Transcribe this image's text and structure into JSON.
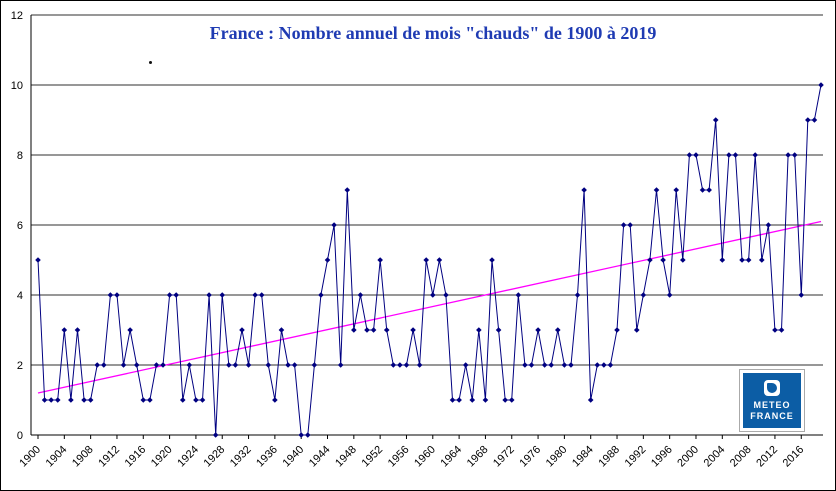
{
  "chart_data": {
    "type": "line",
    "title": "France : Nombre annuel de mois \"chauds\" de 1900 à 2019",
    "x_start_year": 1900,
    "x_end_year": 2019,
    "ylim": [
      0,
      12
    ],
    "y_ticks": [
      0,
      2,
      4,
      6,
      8,
      10,
      12
    ],
    "x_tick_labels": [
      "1900",
      "1904",
      "1908",
      "1912",
      "1916",
      "1920",
      "1924",
      "1928",
      "1932",
      "1936",
      "1940",
      "1944",
      "1948",
      "1952",
      "1956",
      "1960",
      "1964",
      "1968",
      "1972",
      "1976",
      "1980",
      "1984",
      "1988",
      "1992",
      "1996",
      "2000",
      "2004",
      "2008",
      "2012",
      "2016"
    ],
    "grid": true,
    "legend": "none",
    "series_name": "Nombre annuel de mois chauds",
    "values": [
      5,
      1,
      1,
      1,
      3,
      1,
      3,
      1,
      1,
      2,
      2,
      4,
      4,
      2,
      3,
      2,
      1,
      1,
      2,
      2,
      4,
      4,
      1,
      2,
      1,
      1,
      4,
      0,
      4,
      2,
      2,
      3,
      2,
      4,
      4,
      2,
      1,
      3,
      2,
      2,
      0,
      0,
      2,
      4,
      5,
      6,
      2,
      7,
      3,
      4,
      3,
      3,
      5,
      3,
      2,
      2,
      2,
      3,
      2,
      5,
      4,
      5,
      4,
      1,
      1,
      2,
      1,
      3,
      1,
      5,
      3,
      1,
      1,
      4,
      2,
      2,
      3,
      2,
      2,
      3,
      2,
      2,
      4,
      7,
      1,
      2,
      2,
      2,
      3,
      6,
      6,
      3,
      4,
      5,
      7,
      5,
      4,
      7,
      5,
      8,
      8,
      7,
      7,
      9,
      5,
      8,
      8,
      5,
      5,
      8,
      5,
      6,
      3,
      3,
      8,
      8,
      4,
      9,
      9,
      10
    ],
    "trend": {
      "type": "linear",
      "y_at_1900": 1.2,
      "y_at_2019": 6.1
    }
  },
  "colors": {
    "series": "#000080",
    "trend": "#ff00ff",
    "title": "#1f3bb3",
    "grid": "#2f2f2f",
    "axis": "#000000",
    "tick_label": "#000000",
    "logo_bg": "#0c5da5"
  },
  "logo": {
    "line1": "METEO",
    "line2": "FRANCE"
  }
}
